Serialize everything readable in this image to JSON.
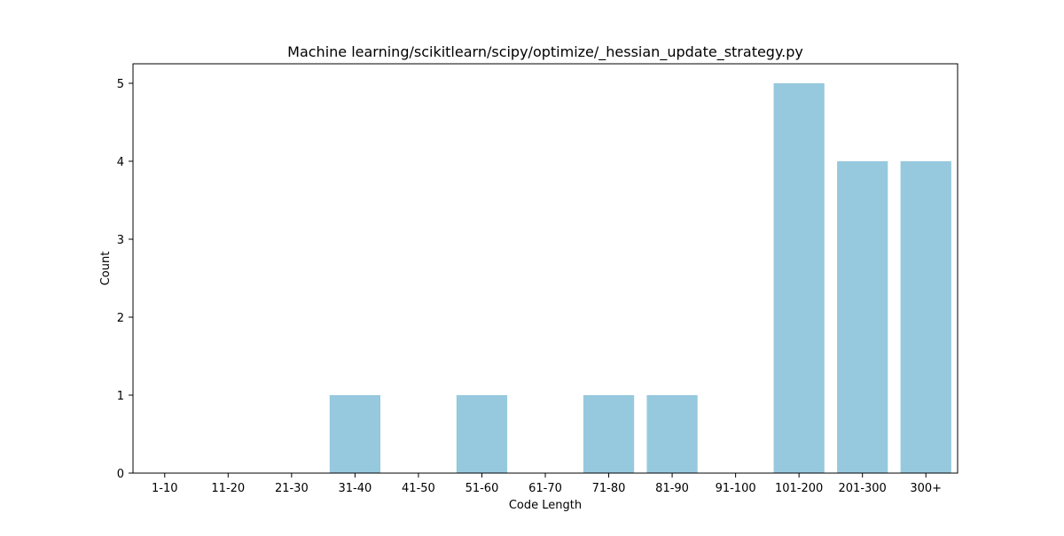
{
  "chart_data": {
    "type": "bar",
    "title": "Machine learning/scikitlearn/scipy/optimize/_hessian_update_strategy.py",
    "xlabel": "Code Length",
    "ylabel": "Count",
    "categories": [
      "1-10",
      "11-20",
      "21-30",
      "31-40",
      "41-50",
      "51-60",
      "61-70",
      "71-80",
      "81-90",
      "91-100",
      "101-200",
      "201-300",
      "300+"
    ],
    "values": [
      0,
      0,
      0,
      1,
      0,
      1,
      0,
      1,
      1,
      0,
      5,
      4,
      4
    ],
    "ylim": [
      0,
      5.25
    ],
    "yticks": [
      "0",
      "1",
      "2",
      "3",
      "4",
      "5"
    ],
    "bar_color": "#96c9de",
    "grid": false,
    "legend": "none"
  }
}
